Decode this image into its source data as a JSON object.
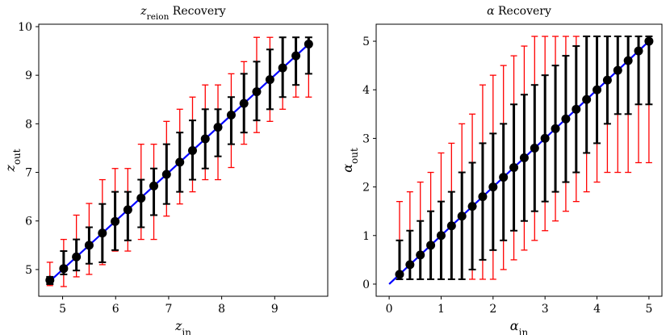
{
  "chart_data": [
    {
      "type": "scatter",
      "title_main": "z",
      "title_sub": "reion",
      "title_tail": " Recovery",
      "xlabel_main": "z",
      "xlabel_sub": "in",
      "ylabel_main": "z",
      "ylabel_sub": "out",
      "xlim": [
        4.55,
        10.0
      ],
      "ylim": [
        4.45,
        10.05
      ],
      "xticks": [
        5,
        6,
        7,
        8,
        9
      ],
      "yticks": [
        5,
        6,
        7,
        8,
        9,
        10
      ],
      "line": {
        "x": [
          4.75,
          9.65
        ],
        "y": [
          4.75,
          9.65
        ],
        "color": "#0000ff"
      },
      "points": [
        {
          "x": 4.76,
          "y": 4.78,
          "black_lo": 4.7,
          "black_hi": 4.85,
          "red_lo": 4.67,
          "red_hi": 5.15
        },
        {
          "x": 5.02,
          "y": 5.02,
          "black_lo": 4.9,
          "black_hi": 5.38,
          "red_lo": 4.65,
          "red_hi": 5.62
        },
        {
          "x": 5.26,
          "y": 5.26,
          "black_lo": 4.98,
          "black_hi": 5.62,
          "red_lo": 4.85,
          "red_hi": 6.12
        },
        {
          "x": 5.5,
          "y": 5.5,
          "black_lo": 5.12,
          "black_hi": 5.87,
          "red_lo": 4.9,
          "red_hi": 6.36
        },
        {
          "x": 5.75,
          "y": 5.75,
          "black_lo": 5.15,
          "black_hi": 6.35,
          "red_lo": 5.1,
          "red_hi": 6.85
        },
        {
          "x": 5.99,
          "y": 5.99,
          "black_lo": 5.4,
          "black_hi": 6.6,
          "red_lo": 5.38,
          "red_hi": 7.08
        },
        {
          "x": 6.23,
          "y": 6.23,
          "black_lo": 5.6,
          "black_hi": 6.6,
          "red_lo": 5.38,
          "red_hi": 7.08
        },
        {
          "x": 6.48,
          "y": 6.47,
          "black_lo": 5.87,
          "black_hi": 6.85,
          "red_lo": 5.62,
          "red_hi": 7.58
        },
        {
          "x": 6.72,
          "y": 6.72,
          "black_lo": 6.12,
          "black_hi": 7.08,
          "red_lo": 5.62,
          "red_hi": 7.58
        },
        {
          "x": 6.96,
          "y": 6.96,
          "black_lo": 6.35,
          "black_hi": 7.58,
          "red_lo": 6.1,
          "red_hi": 8.05
        },
        {
          "x": 7.21,
          "y": 7.21,
          "black_lo": 6.6,
          "black_hi": 7.82,
          "red_lo": 6.35,
          "red_hi": 8.3
        },
        {
          "x": 7.45,
          "y": 7.45,
          "black_lo": 6.85,
          "black_hi": 8.07,
          "red_lo": 6.6,
          "red_hi": 8.55
        },
        {
          "x": 7.69,
          "y": 7.69,
          "black_lo": 7.08,
          "black_hi": 8.3,
          "red_lo": 6.85,
          "red_hi": 8.8
        },
        {
          "x": 7.93,
          "y": 7.93,
          "black_lo": 7.33,
          "black_hi": 8.3,
          "red_lo": 6.85,
          "red_hi": 8.8
        },
        {
          "x": 8.18,
          "y": 8.18,
          "black_lo": 7.58,
          "black_hi": 8.55,
          "red_lo": 7.1,
          "red_hi": 9.03
        },
        {
          "x": 8.42,
          "y": 8.42,
          "black_lo": 7.82,
          "black_hi": 9.03,
          "red_lo": 7.58,
          "red_hi": 9.28
        },
        {
          "x": 8.66,
          "y": 8.66,
          "black_lo": 8.07,
          "black_hi": 9.28,
          "red_lo": 7.82,
          "red_hi": 9.78
        },
        {
          "x": 8.91,
          "y": 8.91,
          "black_lo": 8.3,
          "black_hi": 9.53,
          "red_lo": 8.05,
          "red_hi": 9.78
        },
        {
          "x": 9.15,
          "y": 9.15,
          "black_lo": 8.55,
          "black_hi": 9.78,
          "red_lo": 8.3,
          "red_hi": 9.78
        },
        {
          "x": 9.4,
          "y": 9.4,
          "black_lo": 8.8,
          "black_hi": 9.78,
          "red_lo": 8.55,
          "red_hi": 9.78
        },
        {
          "x": 9.64,
          "y": 9.64,
          "black_lo": 9.03,
          "black_hi": 9.78,
          "red_lo": 8.55,
          "red_hi": 9.78
        }
      ]
    },
    {
      "type": "scatter",
      "title_main": "α",
      "title_sub": "",
      "title_tail": " Recovery",
      "xlabel_main": "α",
      "xlabel_sub": "in",
      "ylabel_main": "α",
      "ylabel_sub": "out",
      "xlim": [
        -0.25,
        5.25
      ],
      "ylim": [
        -0.25,
        5.35
      ],
      "xticks": [
        0,
        1,
        2,
        3,
        4,
        5
      ],
      "yticks": [
        0,
        1,
        2,
        3,
        4,
        5
      ],
      "line": {
        "x": [
          0.0,
          5.0
        ],
        "y": [
          0.0,
          5.0
        ],
        "color": "#0000ff"
      },
      "points": [
        {
          "x": 0.2,
          "y": 0.2,
          "black_lo": 0.1,
          "black_hi": 0.9,
          "red_lo": 0.1,
          "red_hi": 1.7
        },
        {
          "x": 0.4,
          "y": 0.4,
          "black_lo": 0.1,
          "black_hi": 1.1,
          "red_lo": 0.1,
          "red_hi": 1.9
        },
        {
          "x": 0.6,
          "y": 0.6,
          "black_lo": 0.1,
          "black_hi": 1.3,
          "red_lo": 0.1,
          "red_hi": 2.1
        },
        {
          "x": 0.8,
          "y": 0.8,
          "black_lo": 0.1,
          "black_hi": 1.5,
          "red_lo": 0.1,
          "red_hi": 2.3
        },
        {
          "x": 1.0,
          "y": 1.0,
          "black_lo": 0.1,
          "black_hi": 1.7,
          "red_lo": 0.1,
          "red_hi": 2.7
        },
        {
          "x": 1.2,
          "y": 1.2,
          "black_lo": 0.1,
          "black_hi": 1.9,
          "red_lo": 0.1,
          "red_hi": 2.9
        },
        {
          "x": 1.4,
          "y": 1.4,
          "black_lo": 0.1,
          "black_hi": 2.3,
          "red_lo": 0.1,
          "red_hi": 3.3
        },
        {
          "x": 1.6,
          "y": 1.6,
          "black_lo": 0.3,
          "black_hi": 2.5,
          "red_lo": 0.1,
          "red_hi": 3.5
        },
        {
          "x": 1.8,
          "y": 1.8,
          "black_lo": 0.5,
          "black_hi": 2.9,
          "red_lo": 0.1,
          "red_hi": 4.1
        },
        {
          "x": 2.0,
          "y": 2.0,
          "black_lo": 0.7,
          "black_hi": 3.1,
          "red_lo": 0.1,
          "red_hi": 4.3
        },
        {
          "x": 2.2,
          "y": 2.2,
          "black_lo": 0.9,
          "black_hi": 3.3,
          "red_lo": 0.3,
          "red_hi": 4.5
        },
        {
          "x": 2.4,
          "y": 2.4,
          "black_lo": 1.1,
          "black_hi": 3.7,
          "red_lo": 0.5,
          "red_hi": 4.7
        },
        {
          "x": 2.6,
          "y": 2.6,
          "black_lo": 1.3,
          "black_hi": 3.9,
          "red_lo": 0.7,
          "red_hi": 4.9
        },
        {
          "x": 2.8,
          "y": 2.8,
          "black_lo": 1.5,
          "black_hi": 4.1,
          "red_lo": 0.9,
          "red_hi": 5.1
        },
        {
          "x": 3.0,
          "y": 3.0,
          "black_lo": 1.7,
          "black_hi": 4.3,
          "red_lo": 1.1,
          "red_hi": 5.1
        },
        {
          "x": 3.2,
          "y": 3.2,
          "black_lo": 1.9,
          "black_hi": 4.5,
          "red_lo": 1.3,
          "red_hi": 5.1
        },
        {
          "x": 3.4,
          "y": 3.4,
          "black_lo": 2.1,
          "black_hi": 4.7,
          "red_lo": 1.5,
          "red_hi": 5.1
        },
        {
          "x": 3.6,
          "y": 3.6,
          "black_lo": 2.3,
          "black_hi": 4.9,
          "red_lo": 1.7,
          "red_hi": 5.1
        },
        {
          "x": 3.8,
          "y": 3.8,
          "black_lo": 2.7,
          "black_hi": 5.1,
          "red_lo": 1.9,
          "red_hi": 5.1
        },
        {
          "x": 4.0,
          "y": 4.0,
          "black_lo": 2.9,
          "black_hi": 5.1,
          "red_lo": 2.1,
          "red_hi": 5.1
        },
        {
          "x": 4.2,
          "y": 4.2,
          "black_lo": 3.3,
          "black_hi": 5.1,
          "red_lo": 2.3,
          "red_hi": 5.1
        },
        {
          "x": 4.4,
          "y": 4.4,
          "black_lo": 3.5,
          "black_hi": 5.1,
          "red_lo": 2.3,
          "red_hi": 5.1
        },
        {
          "x": 4.6,
          "y": 4.6,
          "black_lo": 3.5,
          "black_hi": 5.1,
          "red_lo": 2.3,
          "red_hi": 5.1
        },
        {
          "x": 4.8,
          "y": 4.8,
          "black_lo": 3.7,
          "black_hi": 5.1,
          "red_lo": 2.5,
          "red_hi": 5.1
        },
        {
          "x": 5.0,
          "y": 5.0,
          "black_lo": 3.7,
          "black_hi": 5.1,
          "red_lo": 2.5,
          "red_hi": 5.1
        }
      ]
    }
  ],
  "colors": {
    "point": "#000000",
    "inner_error": "#000000",
    "outer_error": "#ff0000",
    "fit_line": "#0000ff"
  }
}
